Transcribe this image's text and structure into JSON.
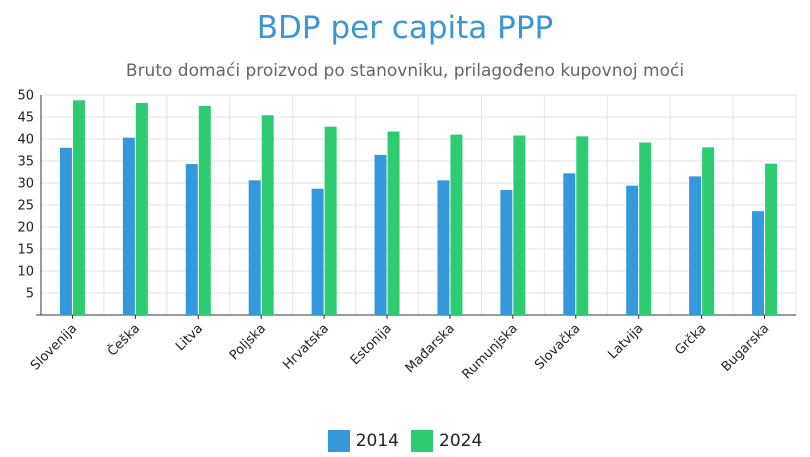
{
  "chart_data": {
    "type": "bar",
    "title": "BDP per capita PPP",
    "subtitle": "Bruto domaći proizvod po stanovniku, prilagođeno kupovnoj moći",
    "categories": [
      "Slovenija",
      "Češka",
      "Litva",
      "Poljska",
      "Hrvatska",
      "Estonija",
      "Mađarska",
      "Rumunjska",
      "Slovačka",
      "Latvija",
      "Grčka",
      "Bugarska"
    ],
    "series": [
      {
        "name": "2014",
        "color": "#3498db",
        "values": [
          38,
          40.3,
          34.3,
          30.6,
          28.7,
          36.4,
          30.6,
          28.4,
          32.2,
          29.4,
          31.5,
          23.6
        ]
      },
      {
        "name": "2024",
        "color": "#2ecc71",
        "values": [
          48.8,
          48.2,
          47.5,
          45.4,
          42.8,
          41.7,
          41,
          40.8,
          40.6,
          39.2,
          38.1,
          34.4
        ]
      }
    ],
    "ylim": [
      0,
      50
    ],
    "yticks": [
      5,
      10,
      15,
      20,
      25,
      30,
      35,
      40,
      45,
      50
    ],
    "xlabel": "",
    "ylabel": "",
    "grid": true,
    "legend": "bottom-center"
  }
}
